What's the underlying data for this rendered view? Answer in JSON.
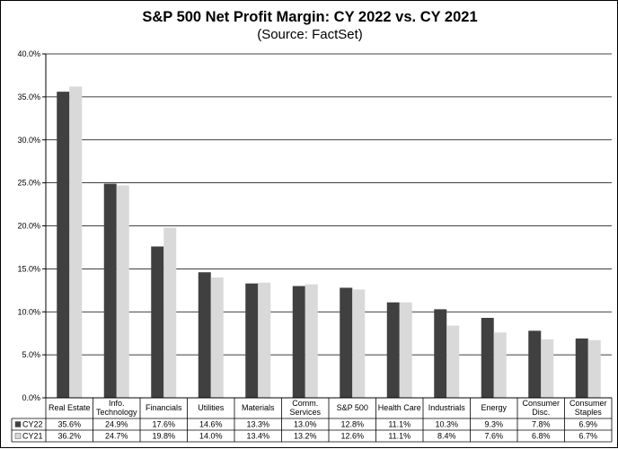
{
  "chart_data": {
    "type": "bar",
    "title": "S&P 500 Net Profit Margin: CY 2022 vs. CY 2021",
    "subtitle": "(Source: FactSet)",
    "categories": [
      [
        "Real Estate"
      ],
      [
        "Info.",
        "Technology"
      ],
      [
        "Financials"
      ],
      [
        "Utilities"
      ],
      [
        "Materials"
      ],
      [
        "Comm.",
        "Services"
      ],
      [
        "S&P 500"
      ],
      [
        "Health Care"
      ],
      [
        "Industrials"
      ],
      [
        "Energy"
      ],
      [
        "Consumer",
        "Disc."
      ],
      [
        "Consumer",
        "Staples"
      ]
    ],
    "series": [
      {
        "name": "CY22",
        "color": "#404040",
        "values": [
          35.6,
          24.9,
          17.6,
          14.6,
          13.3,
          13.0,
          12.8,
          11.1,
          10.3,
          9.3,
          7.8,
          6.9
        ],
        "labels": [
          "35.6%",
          "24.9%",
          "17.6%",
          "14.6%",
          "13.3%",
          "13.0%",
          "12.8%",
          "11.1%",
          "10.3%",
          "9.3%",
          "7.8%",
          "6.9%"
        ]
      },
      {
        "name": "CY21",
        "color": "#d9d9d9",
        "values": [
          36.2,
          24.7,
          19.8,
          14.0,
          13.4,
          13.2,
          12.6,
          11.1,
          8.4,
          7.6,
          6.8,
          6.7
        ],
        "labels": [
          "36.2%",
          "24.7%",
          "19.8%",
          "14.0%",
          "13.4%",
          "13.2%",
          "12.6%",
          "11.1%",
          "8.4%",
          "7.6%",
          "6.8%",
          "6.7%"
        ]
      }
    ],
    "ylim": [
      0,
      40
    ],
    "ytick_values": [
      0,
      5,
      10,
      15,
      20,
      25,
      30,
      35,
      40
    ],
    "ytick_labels": [
      "0.0%",
      "5.0%",
      "10.0%",
      "15.0%",
      "20.0%",
      "25.0%",
      "30.0%",
      "35.0%",
      "40.0%"
    ],
    "grid": true,
    "legend": "data-table",
    "xlabel": "",
    "ylabel": ""
  }
}
